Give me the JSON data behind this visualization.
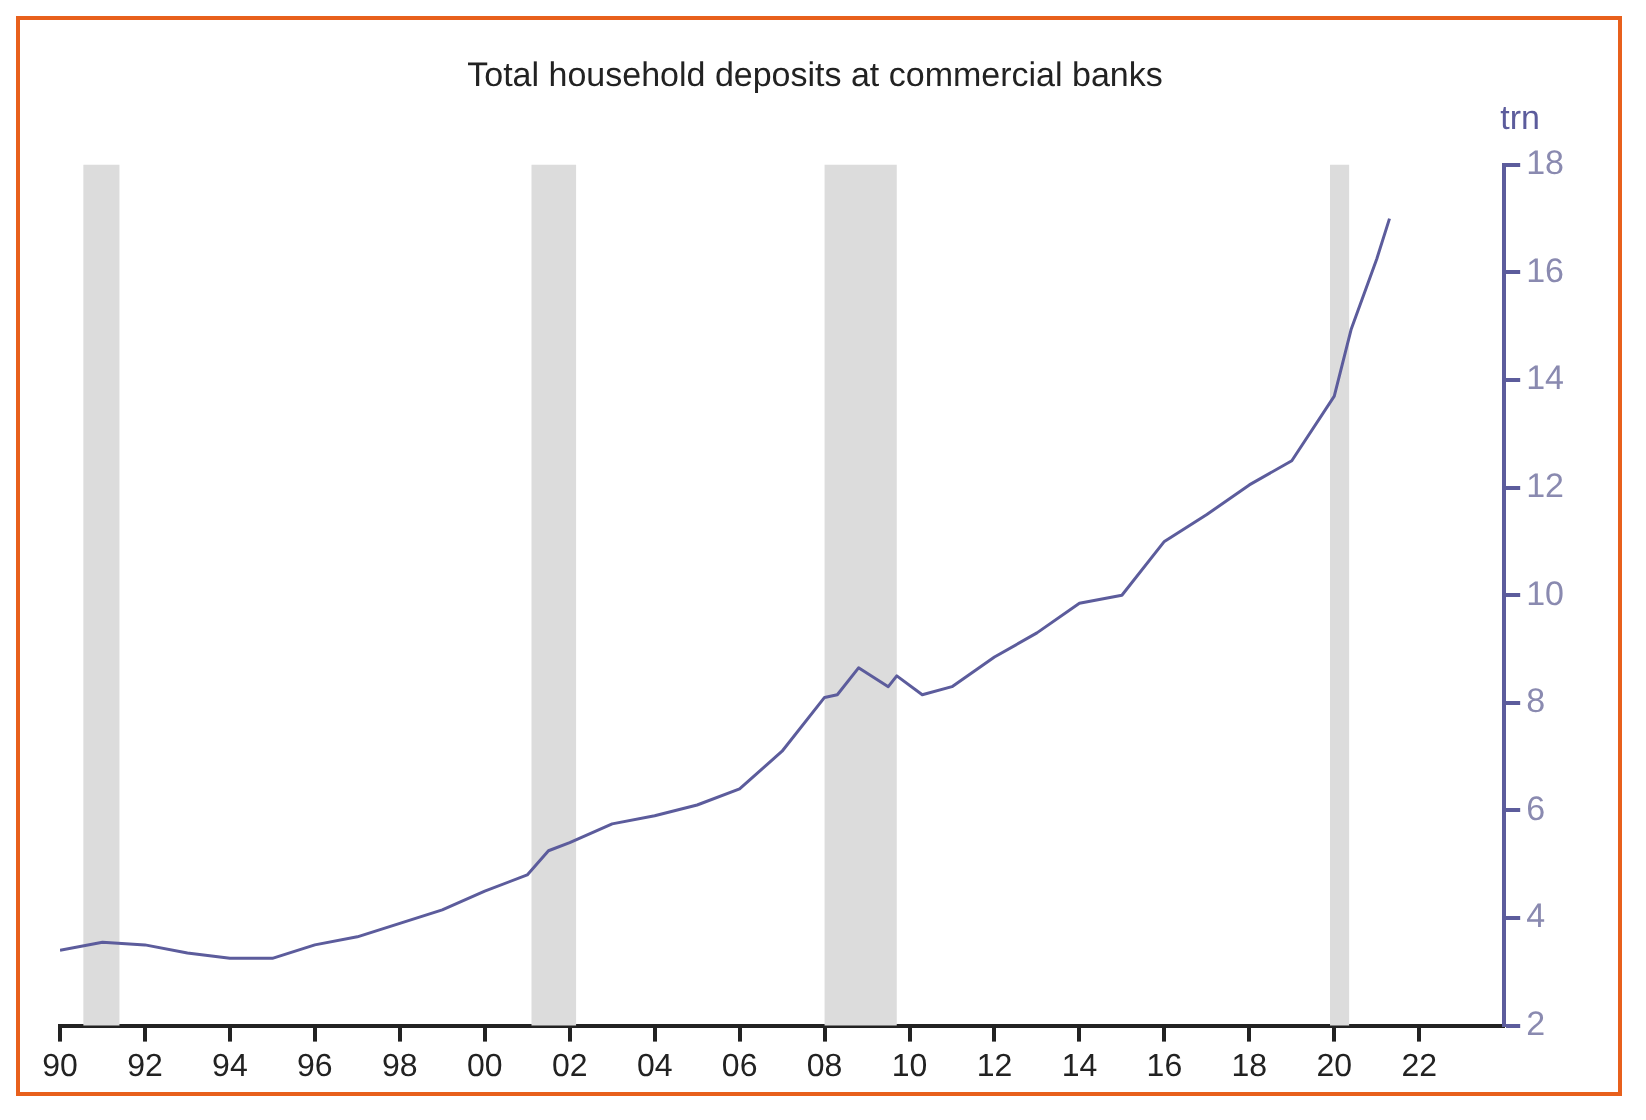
{
  "chart_data": {
    "type": "line",
    "title": "Total household deposits at commercial banks",
    "ylabel": "trn",
    "x": [
      1990,
      1991,
      1992,
      1993,
      1994,
      1995,
      1996,
      1997,
      1998,
      1999,
      2000,
      2001,
      2001.5,
      2002,
      2003,
      2004,
      2005,
      2006,
      2007,
      2008,
      2008.3,
      2008.8,
      2009.5,
      2009.7,
      2010.3,
      2011,
      2012,
      2013,
      2014,
      2015,
      2016,
      2017,
      2018,
      2019,
      2020,
      2020.4,
      2021,
      2021.3
    ],
    "series": [
      {
        "color": "#5c5c9c",
        "values": [
          3.4,
          3.55,
          3.5,
          3.35,
          3.25,
          3.25,
          3.5,
          3.65,
          3.9,
          4.15,
          4.5,
          4.8,
          5.25,
          5.4,
          5.75,
          5.9,
          6.1,
          6.4,
          7.1,
          8.1,
          8.15,
          8.65,
          8.3,
          8.5,
          8.15,
          8.3,
          8.85,
          9.3,
          9.85,
          10.0,
          11.0,
          11.5,
          12.05,
          12.5,
          13.7,
          14.95,
          16.25,
          17.0
        ]
      }
    ],
    "xlim": [
      1990,
      2024
    ],
    "xticks": [
      {
        "value": 1990,
        "label": "90"
      },
      {
        "value": 1992,
        "label": "92"
      },
      {
        "value": 1994,
        "label": "94"
      },
      {
        "value": 1996,
        "label": "96"
      },
      {
        "value": 1998,
        "label": "98"
      },
      {
        "value": 2000,
        "label": "00"
      },
      {
        "value": 2002,
        "label": "02"
      },
      {
        "value": 2004,
        "label": "04"
      },
      {
        "value": 2006,
        "label": "06"
      },
      {
        "value": 2008,
        "label": "08"
      },
      {
        "value": 2010,
        "label": "10"
      },
      {
        "value": 2012,
        "label": "12"
      },
      {
        "value": 2014,
        "label": "14"
      },
      {
        "value": 2016,
        "label": "16"
      },
      {
        "value": 2018,
        "label": "18"
      },
      {
        "value": 2020,
        "label": "20"
      },
      {
        "value": 2022,
        "label": "22"
      }
    ],
    "ylim": [
      2,
      18
    ],
    "yticks": [
      2,
      4,
      6,
      8,
      10,
      12,
      14,
      16,
      18
    ],
    "bands": [
      {
        "axis": "x",
        "from": 1990.55,
        "to": 1991.4,
        "color": "#dcdcdc"
      },
      {
        "axis": "x",
        "from": 2001.1,
        "to": 2002.15,
        "color": "#dcdcdc"
      },
      {
        "axis": "x",
        "from": 2008.0,
        "to": 2009.7,
        "color": "#dcdcdc"
      },
      {
        "axis": "x",
        "from": 2019.9,
        "to": 2020.35,
        "color": "#dcdcdc"
      }
    ],
    "marker": "none",
    "line_style": "solid"
  }
}
